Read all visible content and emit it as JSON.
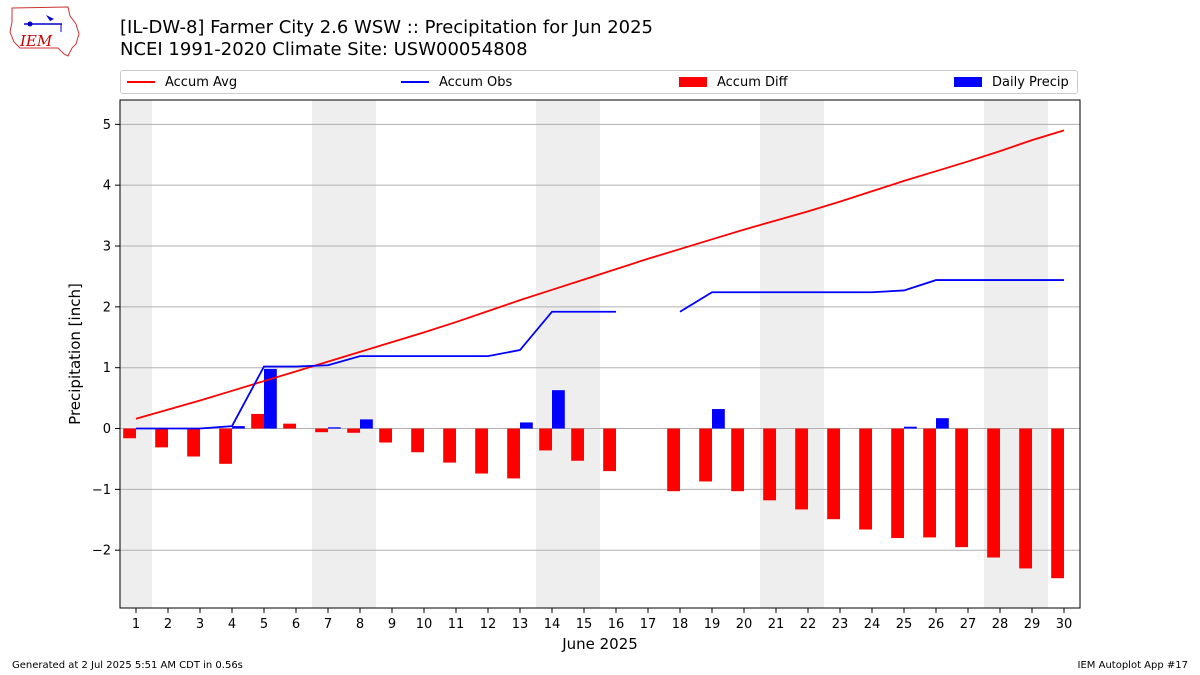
{
  "header": {
    "title_line1": "[IL-DW-8] Farmer City 2.6 WSW :: Precipitation for Jun 2025",
    "title_line2": "NCEI 1991-2020 Climate Site: USW00054808",
    "logo_text": "IEM"
  },
  "footer": {
    "generated": "Generated at 2 Jul 2025 5:51 AM CDT in 0.56s",
    "app": "IEM Autoplot App #17"
  },
  "colors": {
    "accum_avg": "#ff0000",
    "accum_obs": "#0000ff",
    "accum_diff": "#ff0000",
    "daily_precip": "#0000ff",
    "weekend_shade": "#eeeeee",
    "grid": "#b0b0b0"
  },
  "chart_data": {
    "type": "bar",
    "title": "[IL-DW-8] Farmer City 2.6 WSW :: Precipitation for Jun 2025",
    "subtitle": "NCEI 1991-2020 Climate Site: USW00054808",
    "xlabel": "June 2025",
    "ylabel": "Precipitation [inch]",
    "xlim": [
      0.5,
      30.5
    ],
    "ylim": [
      -2.95,
      5.4
    ],
    "yticks": [
      -2,
      -1,
      0,
      1,
      2,
      3,
      4,
      5
    ],
    "ytick_labels": [
      "−2",
      "−1",
      "0",
      "1",
      "2",
      "3",
      "4",
      "5"
    ],
    "grid": "horizontal",
    "legend_position": "top",
    "days": [
      1,
      2,
      3,
      4,
      5,
      6,
      7,
      8,
      9,
      10,
      11,
      12,
      13,
      14,
      15,
      16,
      17,
      18,
      19,
      20,
      21,
      22,
      23,
      24,
      25,
      26,
      27,
      28,
      29,
      30
    ],
    "weekend_days": [
      1,
      7,
      8,
      14,
      15,
      21,
      22,
      28,
      29
    ],
    "series": [
      {
        "name": "Accum Avg",
        "kind": "line",
        "values": [
          0.16,
          0.31,
          0.46,
          0.62,
          0.78,
          0.94,
          1.1,
          1.26,
          1.42,
          1.58,
          1.75,
          1.93,
          2.11,
          2.28,
          2.45,
          2.62,
          2.79,
          2.95,
          3.11,
          3.27,
          3.42,
          3.57,
          3.73,
          3.9,
          4.07,
          4.23,
          4.39,
          4.56,
          4.74,
          4.9
        ]
      },
      {
        "name": "Accum Obs",
        "kind": "line",
        "values": [
          0.0,
          0.0,
          0.0,
          0.04,
          1.02,
          1.02,
          1.04,
          1.19,
          1.19,
          1.19,
          1.19,
          1.19,
          1.29,
          1.92,
          1.92,
          1.92,
          null,
          1.92,
          2.24,
          2.24,
          2.24,
          2.24,
          2.24,
          2.24,
          2.27,
          2.44,
          2.44,
          2.44,
          2.44,
          2.44
        ]
      },
      {
        "name": "Accum Diff",
        "kind": "bar",
        "values": [
          -0.16,
          -0.31,
          -0.46,
          -0.58,
          0.24,
          0.08,
          -0.06,
          -0.07,
          -0.23,
          -0.39,
          -0.56,
          -0.74,
          -0.82,
          -0.36,
          -0.53,
          -0.7,
          null,
          -1.03,
          -0.87,
          -1.03,
          -1.18,
          -1.33,
          -1.49,
          -1.66,
          -1.8,
          -1.79,
          -1.95,
          -2.12,
          -2.3,
          -2.46
        ]
      },
      {
        "name": "Daily Precip",
        "kind": "bar",
        "values": [
          0,
          0,
          0,
          0.04,
          0.98,
          0,
          0.02,
          0.15,
          0,
          0,
          0,
          0,
          0.1,
          0.63,
          0,
          0,
          null,
          0,
          0.32,
          0,
          0,
          0,
          0,
          0,
          0.03,
          0.17,
          0,
          0,
          0,
          0
        ]
      }
    ]
  }
}
